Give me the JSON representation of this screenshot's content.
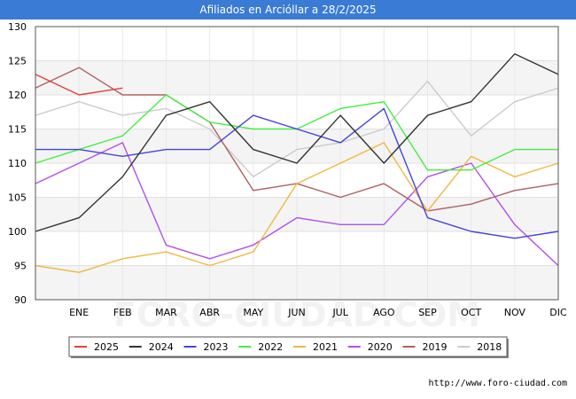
{
  "page": {
    "title": "Afiliados en Arcióllar a 28/2/2025",
    "footer_url": "http://www.foro-ciudad.com",
    "watermark": "FORO-CIUDAD.COM"
  },
  "chart_data": {
    "type": "line",
    "title": "Afiliados en Arcióllar a 28/2/2025",
    "xlabel": "",
    "ylabel": "",
    "categories": [
      "",
      "ENE",
      "FEB",
      "MAR",
      "ABR",
      "MAY",
      "JUN",
      "JUL",
      "AGO",
      "SEP",
      "OCT",
      "NOV",
      "DIC"
    ],
    "ylim": [
      90,
      130
    ],
    "yticks": [
      90,
      95,
      100,
      105,
      110,
      115,
      120,
      125,
      130
    ],
    "grid": true,
    "legend_position": "bottom",
    "series": [
      {
        "name": "2025",
        "color": "#e04040",
        "values": [
          123,
          120,
          121,
          null,
          null,
          null,
          null,
          null,
          null,
          null,
          null,
          null,
          null
        ]
      },
      {
        "name": "2024",
        "color": "#333333",
        "values": [
          100,
          102,
          108,
          117,
          119,
          112,
          110,
          117,
          110,
          117,
          119,
          126,
          123
        ]
      },
      {
        "name": "2023",
        "color": "#4444dd",
        "values": [
          112,
          112,
          111,
          112,
          112,
          117,
          115,
          113,
          118,
          102,
          100,
          99,
          100
        ]
      },
      {
        "name": "2022",
        "color": "#44ee44",
        "values": [
          110,
          112,
          114,
          120,
          116,
          115,
          115,
          118,
          119,
          109,
          109,
          112,
          112
        ]
      },
      {
        "name": "2021",
        "color": "#f0b840",
        "values": [
          95,
          94,
          96,
          97,
          95,
          97,
          107,
          110,
          113,
          103,
          111,
          108,
          110
        ]
      },
      {
        "name": "2020",
        "color": "#b050e8",
        "values": [
          107,
          110,
          113,
          98,
          96,
          98,
          102,
          101,
          101,
          108,
          110,
          101,
          95
        ]
      },
      {
        "name": "2019",
        "color": "#b06060",
        "values": [
          121,
          124,
          120,
          120,
          116,
          106,
          107,
          105,
          107,
          103,
          104,
          106,
          107
        ]
      },
      {
        "name": "2018",
        "color": "#cccccc",
        "values": [
          117,
          119,
          117,
          118,
          115,
          108,
          112,
          113,
          115,
          122,
          114,
          119,
          121
        ]
      }
    ]
  }
}
